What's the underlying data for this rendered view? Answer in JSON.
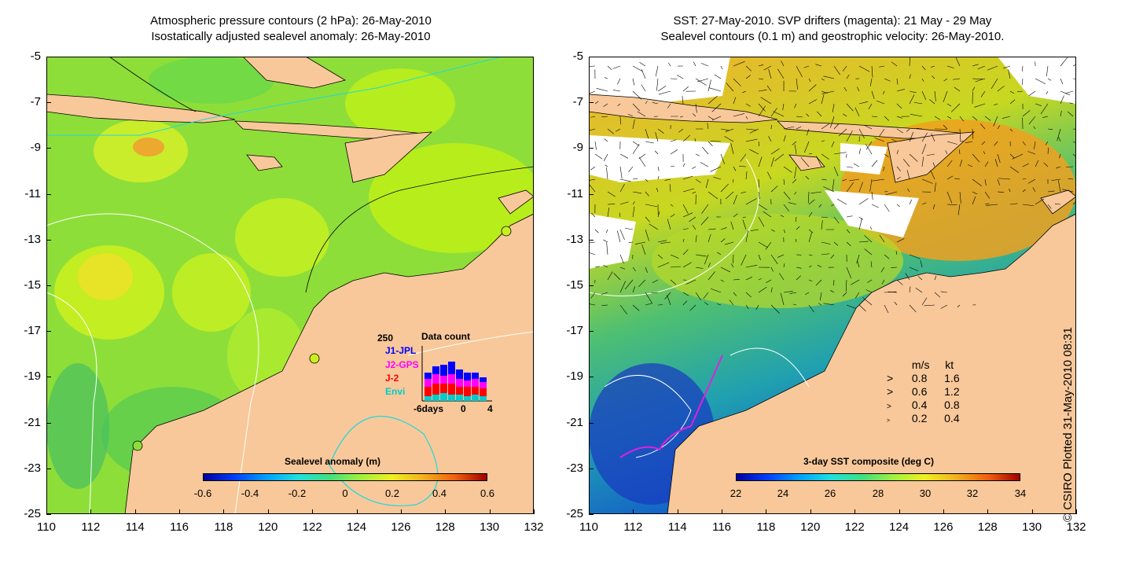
{
  "left_panel": {
    "title_line1": "Atmospheric pressure contours (2 hPa): 26-May-2010",
    "title_line2": "Isostatically adjusted sealevel anomaly: 26-May-2010",
    "colorbar": {
      "label": "Sealevel anomaly (m)",
      "ticks": [
        "-0.6",
        "-0.4",
        "-0.2",
        "0",
        "0.2",
        "0.4",
        "0.6"
      ]
    },
    "data_count": {
      "title": "Data count",
      "ymax": "250",
      "series": [
        {
          "name": "J1-JPL",
          "color": "#0000ff"
        },
        {
          "name": "J2-GPS",
          "color": "#ff00ff"
        },
        {
          "name": "J-2",
          "color": "#ff0000"
        },
        {
          "name": "Envi",
          "color": "#00cccc"
        }
      ],
      "xticks": [
        "-6days",
        "0",
        "4"
      ]
    }
  },
  "right_panel": {
    "title_line1": "SST: 27-May-2010. SVP drifters (magenta): 21 May - 29 May",
    "title_line2": "Sealevel contours (0.1 m) and geostrophic velocity: 26-May-2010.",
    "colorbar": {
      "label": "3-day SST composite (deg C)",
      "ticks": [
        "22",
        "24",
        "26",
        "28",
        "30",
        "32",
        "34"
      ]
    },
    "velocity_legend": {
      "header_ms": "m/s",
      "header_kt": "kt",
      "rows": [
        {
          "ms": "0.8",
          "kt": "1.6"
        },
        {
          "ms": "0.6",
          "kt": "1.2"
        },
        {
          "ms": "0.4",
          "kt": "0.8"
        },
        {
          "ms": "0.2",
          "kt": "0.4"
        }
      ]
    }
  },
  "axes": {
    "lat_ticks": [
      "-5",
      "-7",
      "-9",
      "-11",
      "-13",
      "-15",
      "-17",
      "-19",
      "-21",
      "-23",
      "-25"
    ],
    "lon_ticks": [
      "110",
      "112",
      "114",
      "116",
      "118",
      "120",
      "122",
      "124",
      "126",
      "128",
      "130",
      "132"
    ]
  },
  "credit": "© CSIRO Plotted 31-May-2010 08:31",
  "colors": {
    "land": "#f8c89a",
    "ocean_green": "#7ddc3c",
    "sst_orange": "#f0a020",
    "sst_blue": "#1060d0"
  }
}
